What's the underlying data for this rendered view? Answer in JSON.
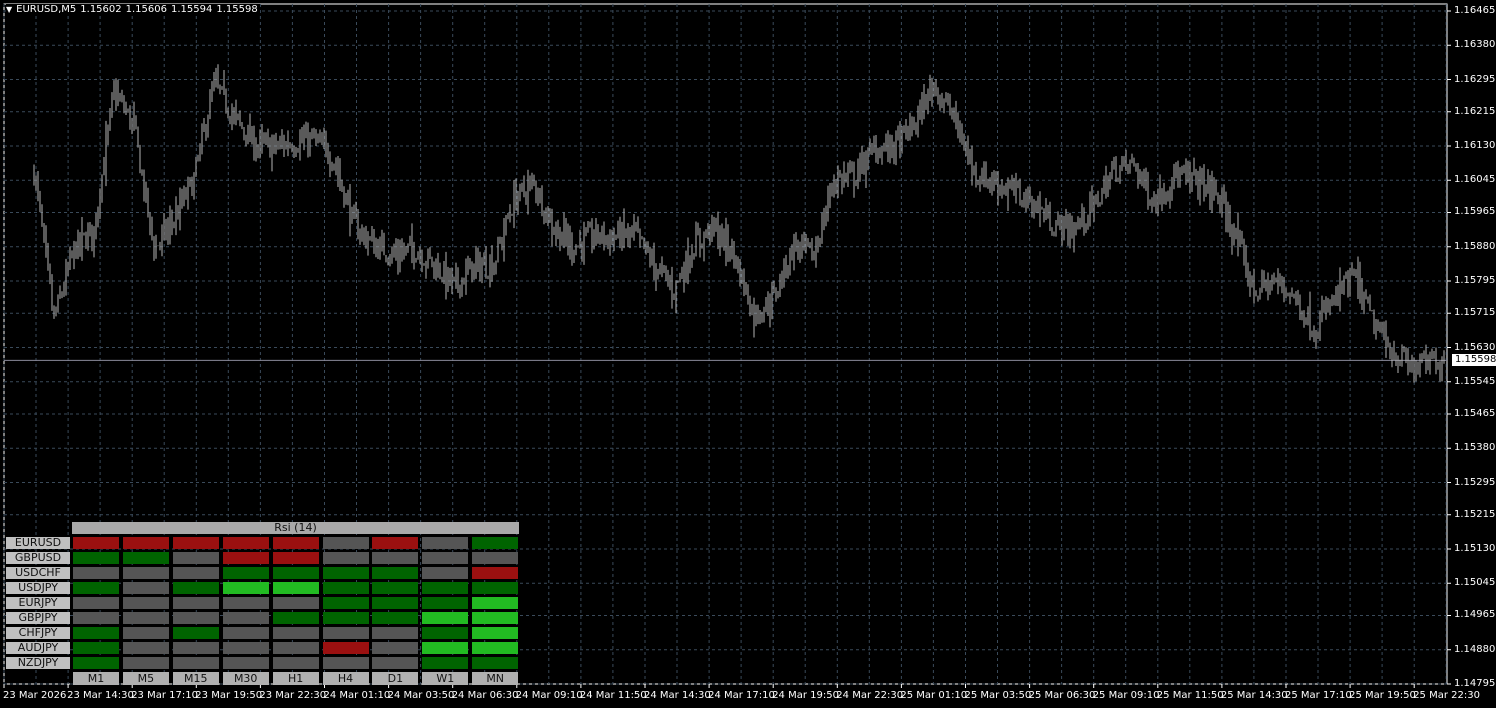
{
  "header": {
    "symbol_title": "EURUSD,M5",
    "open": "1.15602",
    "high": "1.15606",
    "low": "1.15594",
    "close": "1.15598"
  },
  "colors": {
    "background": "#000000",
    "bars": "#b4b4b4",
    "grid": "#3a4a5a",
    "bearish": "#9b1010",
    "bullish": "#006400",
    "strong_bullish": "#22bb22",
    "neutral": "#555555"
  },
  "chart_data": {
    "type": "bar",
    "symbol": "EURUSD",
    "timeframe": "M5",
    "current_price": "1.15598",
    "ylim": [
      1.14795,
      1.16465
    ],
    "price_ticks": [
      "1.16465",
      "1.16380",
      "1.16295",
      "1.16215",
      "1.16130",
      "1.16045",
      "1.15965",
      "1.15880",
      "1.15795",
      "1.15715",
      "1.15630",
      "1.15545",
      "1.15465",
      "1.15380",
      "1.15295",
      "1.15215",
      "1.15130",
      "1.15045",
      "1.14965",
      "1.14880",
      "1.14795"
    ],
    "time_ticks": [
      "23 Mar 2026",
      "23 Mar 14:30",
      "23 Mar 17:10",
      "23 Mar 19:50",
      "23 Mar 22:30",
      "24 Mar 01:10",
      "24 Mar 03:50",
      "24 Mar 06:30",
      "24 Mar 09:10",
      "24 Mar 11:50",
      "24 Mar 14:30",
      "24 Mar 17:10",
      "24 Mar 19:50",
      "24 Mar 22:30",
      "25 Mar 01:10",
      "25 Mar 03:50",
      "25 Mar 06:30",
      "25 Mar 09:10",
      "25 Mar 11:50",
      "25 Mar 14:30",
      "25 Mar 17:10",
      "25 Mar 19:50",
      "25 Mar 22:30"
    ],
    "price_path": [
      1.16071,
      1.15699,
      1.15872,
      1.15922,
      1.16264,
      1.1618,
      1.15872,
      1.15947,
      1.16046,
      1.16284,
      1.162,
      1.16133,
      1.16128,
      1.1614,
      1.16145,
      1.16096,
      1.15934,
      1.15885,
      1.1586,
      1.15877,
      1.15835,
      1.15783,
      1.15828,
      1.1584,
      1.15996,
      1.16036,
      1.15927,
      1.1588,
      1.15907,
      1.15905,
      1.15914,
      1.15835,
      1.15773,
      1.15885,
      1.15927,
      1.1586,
      1.15711,
      1.15753,
      1.15885,
      1.1586,
      1.16046,
      1.16058,
      1.1612,
      1.1613,
      1.16182,
      1.16284,
      1.162,
      1.16066,
      1.16041,
      1.16016,
      1.15986,
      1.15934,
      1.15922,
      1.15981,
      1.16071,
      1.16084,
      1.15991,
      1.16056,
      1.16046,
      1.16021,
      1.15917,
      1.15768,
      1.15793,
      1.15761,
      1.15674,
      1.15748,
      1.15808,
      1.15686,
      1.15614,
      1.15579,
      1.15598
    ]
  },
  "rsi_panel": {
    "title": "Rsi (14)",
    "timeframes": [
      "M1",
      "M5",
      "M15",
      "M30",
      "H1",
      "H4",
      "D1",
      "W1",
      "MN"
    ],
    "rows": [
      {
        "symbol": "EURUSD",
        "states": [
          "bearish",
          "bearish",
          "bearish",
          "bearish",
          "bearish",
          "neutral",
          "bearish",
          "neutral",
          "bullish"
        ]
      },
      {
        "symbol": "GBPUSD",
        "states": [
          "bullish",
          "bullish",
          "neutral",
          "bearish",
          "bearish",
          "neutral",
          "neutral",
          "neutral",
          "neutral"
        ]
      },
      {
        "symbol": "USDCHF",
        "states": [
          "neutral",
          "neutral",
          "neutral",
          "bullish",
          "bullish",
          "bullish",
          "bullish",
          "neutral",
          "bearish"
        ]
      },
      {
        "symbol": "USDJPY",
        "states": [
          "bullish",
          "neutral",
          "bullish",
          "strong_bullish",
          "strong_bullish",
          "bullish",
          "bullish",
          "bullish",
          "bullish"
        ]
      },
      {
        "symbol": "EURJPY",
        "states": [
          "neutral",
          "neutral",
          "neutral",
          "neutral",
          "neutral",
          "bullish",
          "bullish",
          "bullish",
          "strong_bullish"
        ]
      },
      {
        "symbol": "GBPJPY",
        "states": [
          "neutral",
          "neutral",
          "neutral",
          "neutral",
          "bullish",
          "bullish",
          "bullish",
          "strong_bullish",
          "strong_bullish"
        ]
      },
      {
        "symbol": "CHFJPY",
        "states": [
          "bullish",
          "neutral",
          "bullish",
          "neutral",
          "neutral",
          "neutral",
          "neutral",
          "bullish",
          "strong_bullish"
        ]
      },
      {
        "symbol": "AUDJPY",
        "states": [
          "bullish",
          "neutral",
          "neutral",
          "neutral",
          "neutral",
          "bearish",
          "neutral",
          "strong_bullish",
          "strong_bullish"
        ]
      },
      {
        "symbol": "NZDJPY",
        "states": [
          "bullish",
          "neutral",
          "neutral",
          "neutral",
          "neutral",
          "neutral",
          "neutral",
          "bullish",
          "bullish"
        ]
      }
    ]
  }
}
